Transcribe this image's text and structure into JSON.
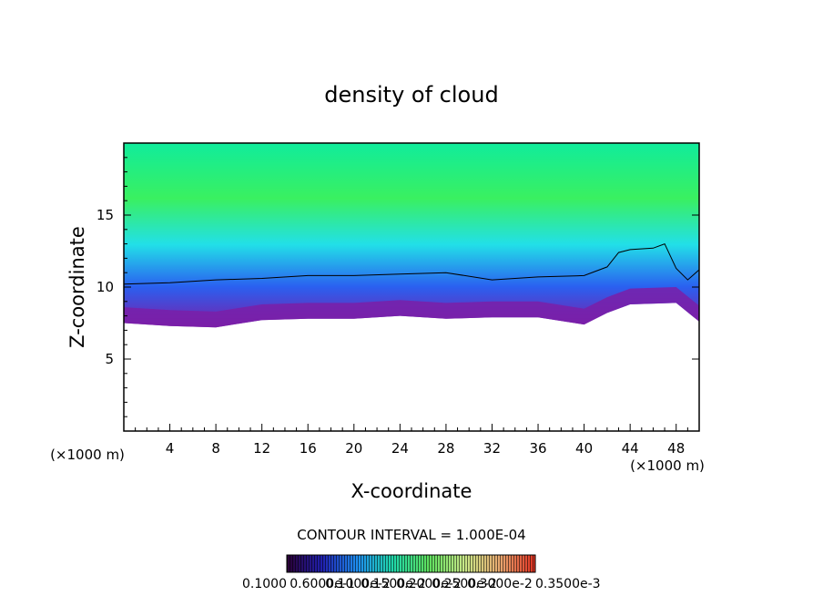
{
  "chart_data": {
    "type": "heatmap",
    "title": "density of cloud",
    "xlabel": "X-coordinate",
    "ylabel": "Z-coordinate",
    "x_unit_label": "(×1000 m)",
    "y_unit_label": "(×1000 m)",
    "xlim": [
      0,
      50
    ],
    "ylim": [
      0,
      20
    ],
    "x_ticks": [
      4,
      8,
      12,
      16,
      20,
      24,
      28,
      32,
      36,
      40,
      44,
      48
    ],
    "y_ticks": [
      5,
      10,
      15
    ],
    "contour_interval_text": "CONTOUR INTERVAL = 1.000E-04",
    "colorbar_labels": [
      "0.1000",
      "0.6000e-1",
      "0.1000e-2",
      "0.1500e-2",
      "0.2000e-2",
      "0.2500e-2",
      "0.3000e-2",
      "0.3500e-3"
    ],
    "colorbar_colors": [
      "#2a0033",
      "#2020b0",
      "#1e8ff0",
      "#20d8a8",
      "#5ee05e",
      "#c8e888",
      "#e8a870",
      "#e03020"
    ],
    "field_colors": {
      "top": "#10ec9c",
      "core": "#3af060",
      "mid": "#22e0e8",
      "low": "#2a60f0",
      "base": "#7a1fa8"
    },
    "cloud_base_km": [
      [
        0,
        7.5
      ],
      [
        4,
        7.3
      ],
      [
        8,
        7.2
      ],
      [
        12,
        7.7
      ],
      [
        16,
        7.8
      ],
      [
        20,
        7.8
      ],
      [
        24,
        8.0
      ],
      [
        28,
        7.8
      ],
      [
        32,
        7.9
      ],
      [
        36,
        7.9
      ],
      [
        40,
        7.4
      ],
      [
        42,
        8.2
      ],
      [
        44,
        8.8
      ],
      [
        48,
        8.9
      ],
      [
        50,
        7.6
      ]
    ],
    "contour_top_km": [
      [
        0,
        10.2
      ],
      [
        4,
        10.3
      ],
      [
        8,
        10.5
      ],
      [
        12,
        10.6
      ],
      [
        16,
        10.8
      ],
      [
        20,
        10.8
      ],
      [
        24,
        10.9
      ],
      [
        28,
        11.0
      ],
      [
        32,
        10.5
      ],
      [
        36,
        10.7
      ],
      [
        40,
        10.8
      ],
      [
        42,
        11.4
      ],
      [
        43,
        12.4
      ],
      [
        44,
        12.6
      ],
      [
        46,
        12.7
      ],
      [
        47,
        13.0
      ],
      [
        48,
        11.3
      ],
      [
        49,
        10.5
      ],
      [
        50,
        11.2
      ]
    ]
  }
}
